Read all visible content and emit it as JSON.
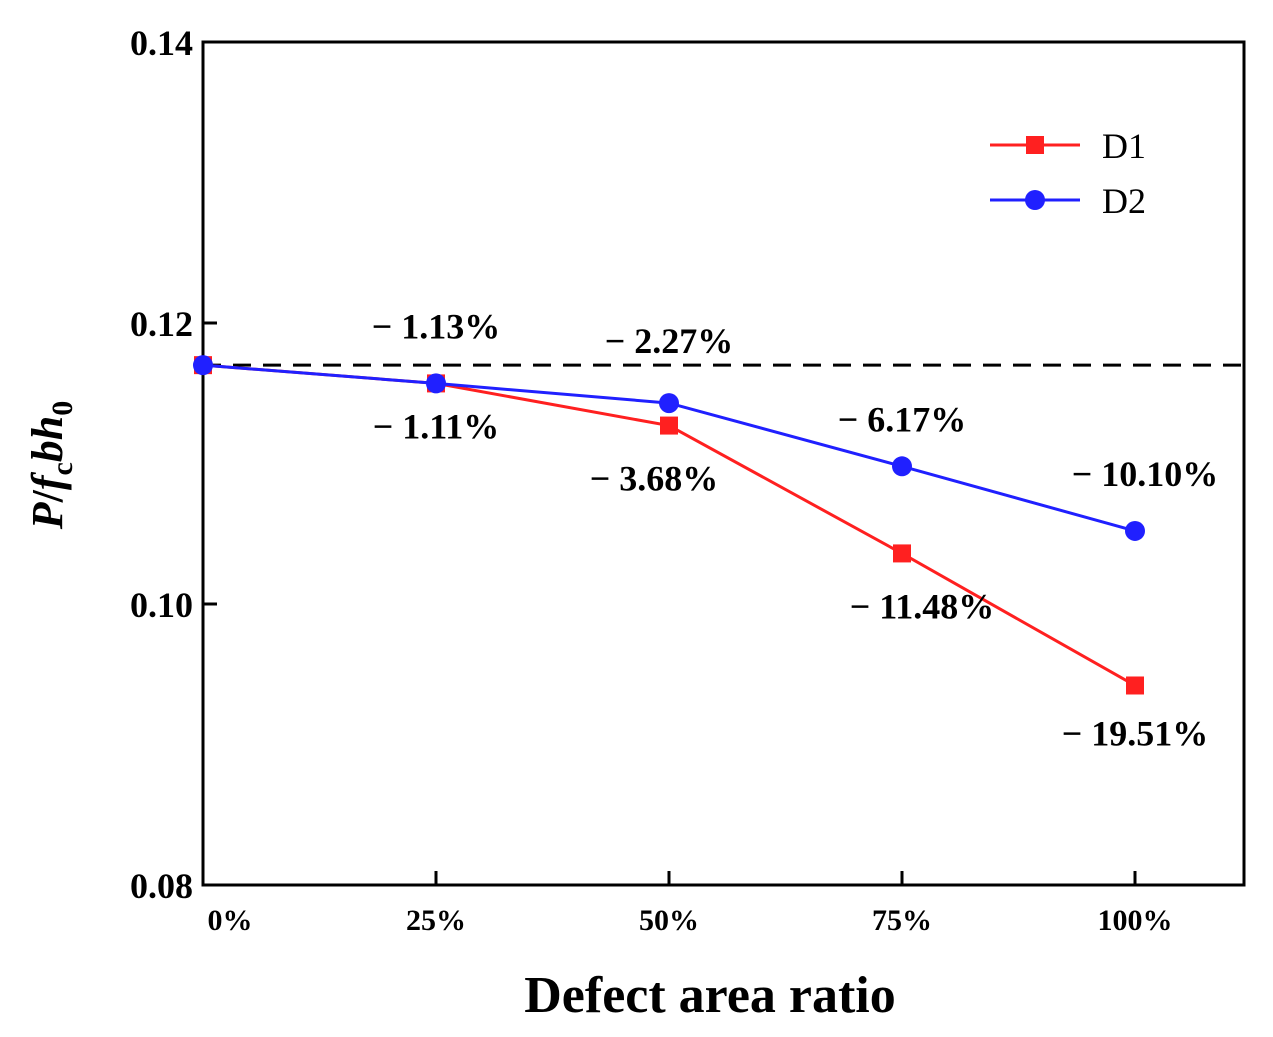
{
  "chart_data": {
    "type": "line",
    "title": "",
    "xlabel": "Defect area ratio",
    "ylabel": {
      "p": "P",
      "slash": "/",
      "f": "f",
      "sub_c": "c",
      "bh": "bh",
      "sub_0": "0"
    },
    "categories": [
      "0%",
      "25%",
      "50%",
      "75%",
      "100%"
    ],
    "ylim": [
      0.08,
      0.14
    ],
    "yticks": [
      "0.08",
      "0.10",
      "0.12",
      "0.14"
    ],
    "yticks_values": [
      0.08,
      0.1,
      0.12,
      0.14
    ],
    "reference_line": 0.117,
    "series": [
      {
        "name": "D1",
        "color": "#ff2020",
        "marker": "square",
        "values": [
          0.117,
          0.1157,
          0.1127,
          0.1036,
          0.0942
        ],
        "labels": [
          "",
          "− 1.11%",
          "− 3.68%",
          "− 11.48%",
          "− 19.51%"
        ]
      },
      {
        "name": "D2",
        "color": "#2020ff",
        "marker": "circle",
        "values": [
          0.117,
          0.1157,
          0.1143,
          0.1098,
          0.1052
        ],
        "labels": [
          "",
          "− 1.13%",
          "− 2.27%",
          "− 6.17%",
          "− 10.10%"
        ]
      }
    ],
    "legend_position": "top-right"
  }
}
